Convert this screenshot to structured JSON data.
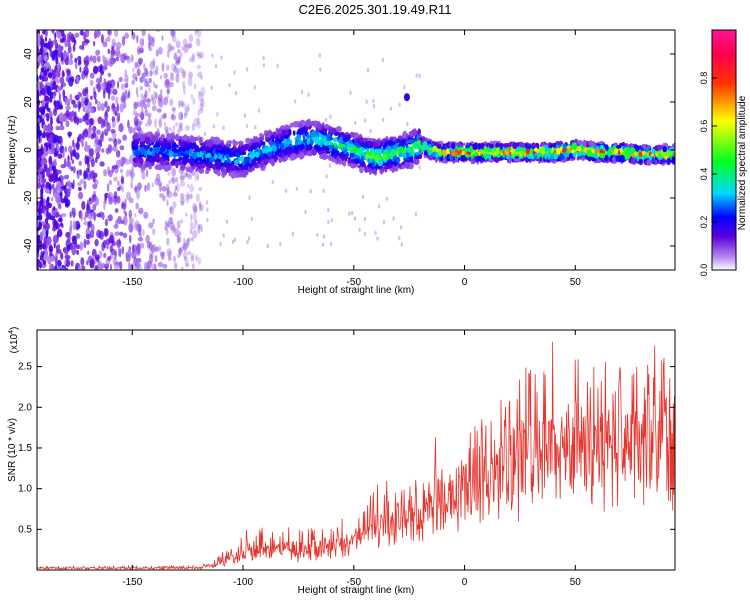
{
  "title": "C2E6.2025.301.19.49.R11",
  "chart_data": [
    {
      "type": "heatmap",
      "name": "spectrogram",
      "xlabel": "Height of straight line (km)",
      "ylabel": "Frequency (Hz)",
      "xlim": [
        -193,
        95
      ],
      "ylim": [
        -50,
        50
      ],
      "xticks": [
        -150,
        -100,
        -50,
        0,
        50
      ],
      "yticks": [
        -40,
        -20,
        0,
        20,
        40
      ],
      "colorbar": {
        "label": "Normalized spectral amplitude",
        "range": [
          0,
          1
        ],
        "ticks": [
          0.0,
          0.2,
          0.4,
          0.6,
          0.8
        ],
        "tick_labels": [
          "0.0",
          "0.2",
          "0.4",
          "0.6",
          "0.8"
        ]
      },
      "ridge": {
        "description_points_x": [
          -150,
          -130,
          -110,
          -100,
          -90,
          -80,
          -70,
          -60,
          -50,
          -45,
          -40,
          -35,
          -30,
          -25,
          -20,
          -15,
          -10,
          0,
          10,
          20,
          30,
          40,
          50,
          60,
          70,
          80,
          90,
          95
        ],
        "description_points_y": [
          0,
          -1,
          -3,
          -4,
          0,
          3,
          5,
          3,
          0,
          -2,
          -3,
          -2,
          -1,
          0,
          2,
          0,
          -1,
          -1,
          -1,
          -1,
          -1,
          -1,
          0,
          -1,
          -1,
          -2,
          -2,
          -2
        ],
        "peak_amplitude": [
          0.25,
          0.25,
          0.3,
          0.3,
          0.3,
          0.35,
          0.35,
          0.4,
          0.45,
          0.45,
          0.5,
          0.5,
          0.45,
          0.5,
          0.55,
          0.7,
          0.75,
          0.85,
          0.85,
          0.8,
          0.85,
          0.85,
          0.9,
          0.8,
          0.85,
          0.8,
          0.7,
          0.7
        ]
      },
      "isolated_blob": {
        "x": -26,
        "y": 22
      }
    },
    {
      "type": "line",
      "name": "snr",
      "xlabel": "Height of straight line (km)",
      "ylabel": "SNR (10 * v/v)",
      "scale_label": "(x10",
      "scale_exp": "4",
      "scale_close": ")",
      "xlim": [
        -193,
        95
      ],
      "ylim": [
        0,
        2.95
      ],
      "xticks": [
        -150,
        -100,
        -50,
        0,
        50
      ],
      "yticks": [
        0.5,
        1.0,
        1.5,
        2.0,
        2.5
      ],
      "ytick_labels": [
        "0.5",
        "1.0",
        "1.5",
        "2.0",
        "2.5"
      ],
      "color": "#e8332c",
      "envelope_x": [
        -193,
        -150,
        -120,
        -112,
        -108,
        -100,
        -95,
        -90,
        -85,
        -80,
        -75,
        -70,
        -65,
        -60,
        -55,
        -50,
        -45,
        -40,
        -35,
        -30,
        -25,
        -20,
        -15,
        -12,
        -10,
        -5,
        0,
        5,
        10,
        15,
        20,
        25,
        30,
        35,
        40,
        45,
        50,
        55,
        60,
        65,
        70,
        75,
        80,
        85,
        90,
        95
      ],
      "envelope_base": [
        0.02,
        0.02,
        0.02,
        0.05,
        0.1,
        0.15,
        0.18,
        0.2,
        0.2,
        0.2,
        0.18,
        0.2,
        0.22,
        0.25,
        0.3,
        0.35,
        0.4,
        0.5,
        0.5,
        0.55,
        0.6,
        0.6,
        0.65,
        0.7,
        0.8,
        0.85,
        0.9,
        0.95,
        1.0,
        1.05,
        1.1,
        1.15,
        1.2,
        1.25,
        1.3,
        1.3,
        1.3,
        1.35,
        1.35,
        1.4,
        1.4,
        1.4,
        1.35,
        1.4,
        1.35,
        1.3
      ],
      "envelope_peak": [
        0.04,
        0.05,
        0.05,
        0.15,
        0.3,
        0.5,
        0.55,
        0.6,
        0.5,
        0.6,
        0.55,
        0.55,
        0.6,
        0.55,
        0.65,
        0.7,
        0.75,
        1.1,
        1.05,
        1.05,
        1.1,
        1.0,
        1.3,
        2.15,
        1.4,
        1.3,
        1.4,
        1.9,
        2.1,
        2.2,
        2.3,
        2.45,
        2.8,
        2.6,
        2.9,
        2.8,
        2.7,
        2.6,
        2.75,
        2.85,
        2.8,
        2.7,
        2.9,
        2.6,
        2.8,
        2.2
      ]
    }
  ]
}
